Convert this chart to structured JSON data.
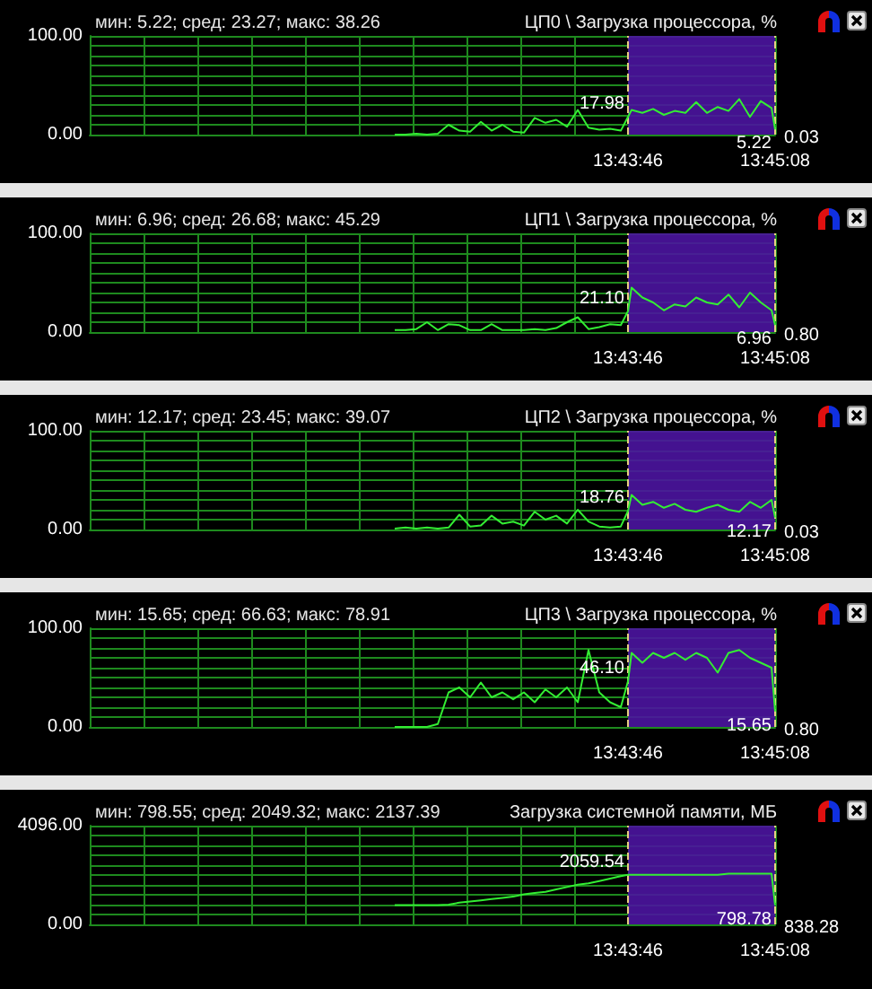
{
  "chart_data": [
    {
      "type": "line",
      "title": "ЦП0 \\ Загрузка процессора, %",
      "subtitle": "мин: 5.22; сред: 23.27; макс: 38.26",
      "grid": true,
      "x": [
        13.69333,
        13.695,
        13.69667,
        13.69833,
        13.7,
        13.70167,
        13.70333,
        13.705,
        13.70667,
        13.70833,
        13.71,
        13.71167,
        13.71333,
        13.715,
        13.71667,
        13.71833,
        13.72,
        13.72167,
        13.72333,
        13.725,
        13.72667,
        13.72833,
        13.72944,
        13.73,
        13.73167,
        13.73333,
        13.735,
        13.73667,
        13.73833,
        13.74,
        13.74167,
        13.74333,
        13.745,
        13.74667,
        13.74833,
        13.75,
        13.75167,
        13.75222
      ],
      "series": [
        {
          "color": "#33ee33",
          "values": [
            0,
            0,
            1,
            0,
            1,
            10,
            4,
            3,
            13,
            4,
            10,
            3,
            2,
            17,
            12,
            15,
            8,
            25,
            7,
            5,
            6,
            4,
            17.98,
            25,
            22,
            26,
            20,
            24,
            22,
            33,
            22,
            28,
            24,
            36,
            18,
            34,
            27,
            5.22
          ],
          "value_labels": [
            null,
            null,
            null,
            null,
            null,
            null,
            null,
            null,
            null,
            null,
            null,
            null,
            null,
            null,
            null,
            null,
            null,
            null,
            null,
            null,
            null,
            null,
            "17.98",
            null,
            null,
            null,
            null,
            null,
            null,
            null,
            null,
            null,
            null,
            null,
            null,
            null,
            null,
            "5.22"
          ]
        }
      ],
      "xlim": [
        13.64611,
        13.75222
      ],
      "ylim": [
        0,
        100
      ],
      "xticks": [
        {
          "value": 13.65444,
          "label": null
        },
        {
          "value": 13.66278,
          "label": null
        },
        {
          "value": 13.67111,
          "label": null
        },
        {
          "value": 13.67944,
          "label": null
        },
        {
          "value": 13.68778,
          "label": null
        },
        {
          "value": 13.69611,
          "label": null
        },
        {
          "value": 13.70444,
          "label": null
        },
        {
          "value": 13.71278,
          "label": null
        },
        {
          "value": 13.72111,
          "label": null
        },
        {
          "value": 13.72944,
          "label": "13:43:46"
        },
        {
          "value": 13.75222,
          "label": "13:45:08"
        }
      ],
      "yticks": [
        {
          "value": 0,
          "label": "0.00"
        },
        {
          "value": 10,
          "label": null
        },
        {
          "value": 20,
          "label": null
        },
        {
          "value": 30,
          "label": null
        },
        {
          "value": 40,
          "label": null
        },
        {
          "value": 50,
          "label": null
        },
        {
          "value": 60,
          "label": null
        },
        {
          "value": 70,
          "label": null
        },
        {
          "value": 80,
          "label": null
        },
        {
          "value": 90,
          "label": null
        },
        {
          "value": 100,
          "label": "100.00"
        }
      ],
      "bands": [
        {
          "axis": "x",
          "from": 13.72944,
          "to": 13.75222,
          "color": "#4b14a0"
        }
      ],
      "ref_lines": [
        {
          "axis": "x",
          "value": 13.72944,
          "color": "#e8d080",
          "line_style": "dashed"
        },
        {
          "axis": "x",
          "value": 13.75222,
          "color": "#e8d080",
          "line_style": "dashed"
        }
      ],
      "annotations": [
        "0.03"
      ]
    },
    {
      "type": "line",
      "title": "ЦП1 \\ Загрузка процессора, %",
      "subtitle": "мин: 6.96; сред: 26.68; макс: 45.29",
      "grid": true,
      "x": [
        13.69333,
        13.695,
        13.69667,
        13.69833,
        13.7,
        13.70167,
        13.70333,
        13.705,
        13.70667,
        13.70833,
        13.71,
        13.71167,
        13.71333,
        13.715,
        13.71667,
        13.71833,
        13.72,
        13.72167,
        13.72333,
        13.725,
        13.72667,
        13.72833,
        13.72944,
        13.73,
        13.73167,
        13.73333,
        13.735,
        13.73667,
        13.73833,
        13.74,
        13.74167,
        13.74333,
        13.745,
        13.74667,
        13.74833,
        13.75,
        13.75167,
        13.75222
      ],
      "series": [
        {
          "color": "#33ee33",
          "values": [
            2,
            2,
            3,
            10,
            2,
            8,
            7,
            2,
            2,
            8,
            2,
            2,
            2,
            3,
            2,
            4,
            10,
            15,
            3,
            5,
            8,
            7,
            21.1,
            45,
            35,
            30,
            22,
            28,
            26,
            35,
            30,
            28,
            38,
            25,
            40,
            30,
            22,
            6.96
          ],
          "value_labels": [
            null,
            null,
            null,
            null,
            null,
            null,
            null,
            null,
            null,
            null,
            null,
            null,
            null,
            null,
            null,
            null,
            null,
            null,
            null,
            null,
            null,
            null,
            "21.10",
            null,
            null,
            null,
            null,
            null,
            null,
            null,
            null,
            null,
            null,
            null,
            null,
            null,
            null,
            "6.96"
          ]
        }
      ],
      "xlim": [
        13.64611,
        13.75222
      ],
      "ylim": [
        0,
        100
      ],
      "xticks": [
        {
          "value": 13.65444,
          "label": null
        },
        {
          "value": 13.66278,
          "label": null
        },
        {
          "value": 13.67111,
          "label": null
        },
        {
          "value": 13.67944,
          "label": null
        },
        {
          "value": 13.68778,
          "label": null
        },
        {
          "value": 13.69611,
          "label": null
        },
        {
          "value": 13.70444,
          "label": null
        },
        {
          "value": 13.71278,
          "label": null
        },
        {
          "value": 13.72111,
          "label": null
        },
        {
          "value": 13.72944,
          "label": "13:43:46"
        },
        {
          "value": 13.75222,
          "label": "13:45:08"
        }
      ],
      "yticks": [
        {
          "value": 0,
          "label": "0.00"
        },
        {
          "value": 10,
          "label": null
        },
        {
          "value": 20,
          "label": null
        },
        {
          "value": 30,
          "label": null
        },
        {
          "value": 40,
          "label": null
        },
        {
          "value": 50,
          "label": null
        },
        {
          "value": 60,
          "label": null
        },
        {
          "value": 70,
          "label": null
        },
        {
          "value": 80,
          "label": null
        },
        {
          "value": 90,
          "label": null
        },
        {
          "value": 100,
          "label": "100.00"
        }
      ],
      "bands": [
        {
          "axis": "x",
          "from": 13.72944,
          "to": 13.75222,
          "color": "#4b14a0"
        }
      ],
      "ref_lines": [
        {
          "axis": "x",
          "value": 13.72944,
          "color": "#e8d080",
          "line_style": "dashed"
        },
        {
          "axis": "x",
          "value": 13.75222,
          "color": "#e8d080",
          "line_style": "dashed"
        }
      ],
      "annotations": [
        "0.80"
      ]
    },
    {
      "type": "line",
      "title": "ЦП2 \\ Загрузка процессора, %",
      "subtitle": "мин: 12.17; сред: 23.45; макс: 39.07",
      "grid": true,
      "x": [
        13.69333,
        13.695,
        13.69667,
        13.69833,
        13.7,
        13.70167,
        13.70333,
        13.705,
        13.70667,
        13.70833,
        13.71,
        13.71167,
        13.71333,
        13.715,
        13.71667,
        13.71833,
        13.72,
        13.72167,
        13.72333,
        13.725,
        13.72667,
        13.72833,
        13.72944,
        13.73,
        13.73167,
        13.73333,
        13.735,
        13.73667,
        13.73833,
        13.74,
        13.74167,
        13.74333,
        13.745,
        13.74667,
        13.74833,
        13.75,
        13.75167,
        13.75222
      ],
      "series": [
        {
          "color": "#33ee33",
          "values": [
            1,
            2,
            1,
            2,
            1,
            2,
            15,
            3,
            4,
            14,
            6,
            8,
            4,
            18,
            10,
            14,
            6,
            20,
            8,
            3,
            2,
            3,
            18.76,
            35,
            25,
            28,
            22,
            26,
            20,
            18,
            22,
            25,
            20,
            18,
            28,
            22,
            30,
            12.17
          ],
          "value_labels": [
            null,
            null,
            null,
            null,
            null,
            null,
            null,
            null,
            null,
            null,
            null,
            null,
            null,
            null,
            null,
            null,
            null,
            null,
            null,
            null,
            null,
            null,
            "18.76",
            null,
            null,
            null,
            null,
            null,
            null,
            null,
            null,
            null,
            null,
            null,
            null,
            null,
            null,
            "12.17"
          ]
        }
      ],
      "xlim": [
        13.64611,
        13.75222
      ],
      "ylim": [
        0,
        100
      ],
      "xticks": [
        {
          "value": 13.65444,
          "label": null
        },
        {
          "value": 13.66278,
          "label": null
        },
        {
          "value": 13.67111,
          "label": null
        },
        {
          "value": 13.67944,
          "label": null
        },
        {
          "value": 13.68778,
          "label": null
        },
        {
          "value": 13.69611,
          "label": null
        },
        {
          "value": 13.70444,
          "label": null
        },
        {
          "value": 13.71278,
          "label": null
        },
        {
          "value": 13.72111,
          "label": null
        },
        {
          "value": 13.72944,
          "label": "13:43:46"
        },
        {
          "value": 13.75222,
          "label": "13:45:08"
        }
      ],
      "yticks": [
        {
          "value": 0,
          "label": "0.00"
        },
        {
          "value": 10,
          "label": null
        },
        {
          "value": 20,
          "label": null
        },
        {
          "value": 30,
          "label": null
        },
        {
          "value": 40,
          "label": null
        },
        {
          "value": 50,
          "label": null
        },
        {
          "value": 60,
          "label": null
        },
        {
          "value": 70,
          "label": null
        },
        {
          "value": 80,
          "label": null
        },
        {
          "value": 90,
          "label": null
        },
        {
          "value": 100,
          "label": "100.00"
        }
      ],
      "bands": [
        {
          "axis": "x",
          "from": 13.72944,
          "to": 13.75222,
          "color": "#4b14a0"
        }
      ],
      "ref_lines": [
        {
          "axis": "x",
          "value": 13.72944,
          "color": "#e8d080",
          "line_style": "dashed"
        },
        {
          "axis": "x",
          "value": 13.75222,
          "color": "#e8d080",
          "line_style": "dashed"
        }
      ],
      "annotations": [
        "0.03"
      ]
    },
    {
      "type": "line",
      "title": "ЦП3 \\ Загрузка процессора, %",
      "subtitle": "мин: 15.65; сред: 66.63; макс: 78.91",
      "grid": true,
      "x": [
        13.69333,
        13.695,
        13.69667,
        13.69833,
        13.7,
        13.70167,
        13.70333,
        13.705,
        13.70667,
        13.70833,
        13.71,
        13.71167,
        13.71333,
        13.715,
        13.71667,
        13.71833,
        13.72,
        13.72167,
        13.72333,
        13.725,
        13.72667,
        13.72833,
        13.72944,
        13.73,
        13.73167,
        13.73333,
        13.735,
        13.73667,
        13.73833,
        13.74,
        13.74167,
        13.74333,
        13.745,
        13.74667,
        13.74833,
        13.75,
        13.75167,
        13.75222
      ],
      "series": [
        {
          "color": "#33ee33",
          "values": [
            0,
            0,
            0,
            0,
            3,
            35,
            40,
            30,
            45,
            30,
            35,
            28,
            35,
            25,
            38,
            30,
            40,
            25,
            78,
            35,
            25,
            20,
            46.1,
            75,
            65,
            75,
            70,
            75,
            68,
            75,
            70,
            55,
            75,
            78,
            70,
            65,
            60,
            15.65
          ],
          "value_labels": [
            null,
            null,
            null,
            null,
            null,
            null,
            null,
            null,
            null,
            null,
            null,
            null,
            null,
            null,
            null,
            null,
            null,
            null,
            null,
            null,
            null,
            null,
            "46.10",
            null,
            null,
            null,
            null,
            null,
            null,
            null,
            null,
            null,
            null,
            null,
            null,
            null,
            null,
            "15.65"
          ]
        }
      ],
      "xlim": [
        13.64611,
        13.75222
      ],
      "ylim": [
        0,
        100
      ],
      "xticks": [
        {
          "value": 13.65444,
          "label": null
        },
        {
          "value": 13.66278,
          "label": null
        },
        {
          "value": 13.67111,
          "label": null
        },
        {
          "value": 13.67944,
          "label": null
        },
        {
          "value": 13.68778,
          "label": null
        },
        {
          "value": 13.69611,
          "label": null
        },
        {
          "value": 13.70444,
          "label": null
        },
        {
          "value": 13.71278,
          "label": null
        },
        {
          "value": 13.72111,
          "label": null
        },
        {
          "value": 13.72944,
          "label": "13:43:46"
        },
        {
          "value": 13.75222,
          "label": "13:45:08"
        }
      ],
      "yticks": [
        {
          "value": 0,
          "label": "0.00"
        },
        {
          "value": 10,
          "label": null
        },
        {
          "value": 20,
          "label": null
        },
        {
          "value": 30,
          "label": null
        },
        {
          "value": 40,
          "label": null
        },
        {
          "value": 50,
          "label": null
        },
        {
          "value": 60,
          "label": null
        },
        {
          "value": 70,
          "label": null
        },
        {
          "value": 80,
          "label": null
        },
        {
          "value": 90,
          "label": null
        },
        {
          "value": 100,
          "label": "100.00"
        }
      ],
      "bands": [
        {
          "axis": "x",
          "from": 13.72944,
          "to": 13.75222,
          "color": "#4b14a0"
        }
      ],
      "ref_lines": [
        {
          "axis": "x",
          "value": 13.72944,
          "color": "#e8d080",
          "line_style": "dashed"
        },
        {
          "axis": "x",
          "value": 13.75222,
          "color": "#e8d080",
          "line_style": "dashed"
        }
      ],
      "annotations": [
        "0.80"
      ]
    },
    {
      "type": "line",
      "title": "Загрузка системной памяти, МБ",
      "subtitle": "мин: 798.55; сред: 2049.32; макс: 2137.39",
      "grid": true,
      "x": [
        13.69333,
        13.695,
        13.69667,
        13.69833,
        13.7,
        13.70167,
        13.70333,
        13.705,
        13.70667,
        13.70833,
        13.71,
        13.71167,
        13.71333,
        13.715,
        13.71667,
        13.71833,
        13.72,
        13.72167,
        13.72333,
        13.725,
        13.72667,
        13.72833,
        13.72944,
        13.73,
        13.73167,
        13.73333,
        13.735,
        13.73667,
        13.73833,
        13.74,
        13.74167,
        13.74333,
        13.745,
        13.74667,
        13.74833,
        13.75,
        13.75167,
        13.75222
      ],
      "series": [
        {
          "color": "#33ee33",
          "values": [
            800,
            800,
            800,
            800,
            800,
            820,
            900,
            950,
            1000,
            1050,
            1100,
            1150,
            1250,
            1300,
            1350,
            1450,
            1550,
            1650,
            1700,
            1800,
            1900,
            2000,
            2059.54,
            2060,
            2060,
            2060,
            2060,
            2060,
            2060,
            2060,
            2060,
            2060,
            2100,
            2100,
            2100,
            2100,
            2100,
            798.78
          ],
          "value_labels": [
            null,
            null,
            null,
            null,
            null,
            null,
            null,
            null,
            null,
            null,
            null,
            null,
            null,
            null,
            null,
            null,
            null,
            null,
            null,
            null,
            null,
            null,
            "2059.54",
            null,
            null,
            null,
            null,
            null,
            null,
            null,
            null,
            null,
            null,
            null,
            null,
            null,
            null,
            "798.78"
          ]
        }
      ],
      "xlim": [
        13.64611,
        13.75222
      ],
      "ylim": [
        0,
        4096
      ],
      "xticks": [
        {
          "value": 13.65444,
          "label": null
        },
        {
          "value": 13.66278,
          "label": null
        },
        {
          "value": 13.67111,
          "label": null
        },
        {
          "value": 13.67944,
          "label": null
        },
        {
          "value": 13.68778,
          "label": null
        },
        {
          "value": 13.69611,
          "label": null
        },
        {
          "value": 13.70444,
          "label": null
        },
        {
          "value": 13.71278,
          "label": null
        },
        {
          "value": 13.72111,
          "label": null
        },
        {
          "value": 13.72944,
          "label": "13:43:46"
        },
        {
          "value": 13.75222,
          "label": "13:45:08"
        }
      ],
      "yticks": [
        {
          "value": 0,
          "label": "0.00"
        },
        {
          "value": 409.6,
          "label": null
        },
        {
          "value": 819.2,
          "label": null
        },
        {
          "value": 1228.8,
          "label": null
        },
        {
          "value": 1638.4,
          "label": null
        },
        {
          "value": 2048,
          "label": null
        },
        {
          "value": 2457.6,
          "label": null
        },
        {
          "value": 2867.2,
          "label": null
        },
        {
          "value": 3276.8,
          "label": null
        },
        {
          "value": 3686.4,
          "label": null
        },
        {
          "value": 4096,
          "label": "4096.00"
        }
      ],
      "bands": [
        {
          "axis": "x",
          "from": 13.72944,
          "to": 13.75222,
          "color": "#4b14a0"
        }
      ],
      "ref_lines": [
        {
          "axis": "x",
          "value": 13.72944,
          "color": "#e8d080",
          "line_style": "dashed"
        },
        {
          "axis": "x",
          "value": 13.75222,
          "color": "#e8d080",
          "line_style": "dashed"
        }
      ],
      "annotations": [
        "838.28"
      ]
    }
  ]
}
